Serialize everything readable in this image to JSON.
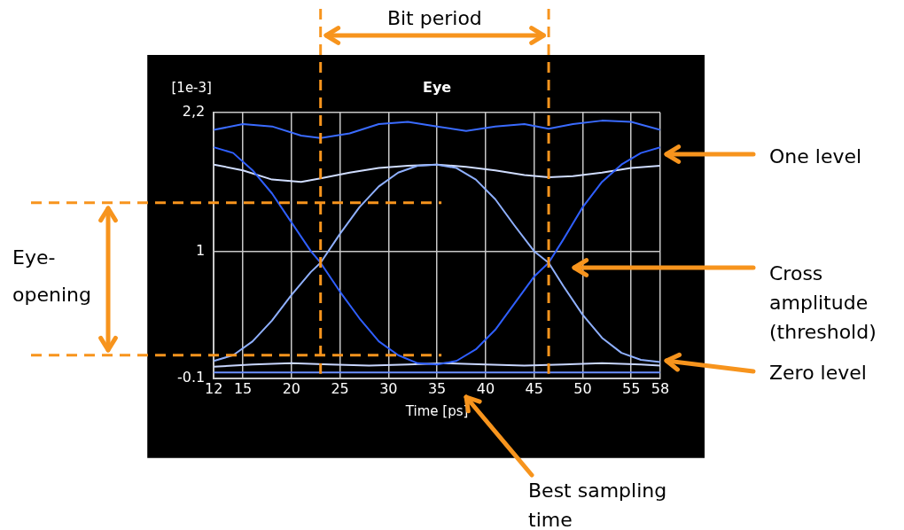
{
  "chart_data": {
    "type": "line",
    "title": "Eye",
    "ylabel": "[1e-3]",
    "xlabel": "Time [ps]",
    "xlim": [
      12,
      58
    ],
    "xticks": [
      12,
      15,
      20,
      25,
      30,
      35,
      40,
      45,
      50,
      55,
      58
    ],
    "ylim": [
      -0.1,
      2.2
    ],
    "yticks": [
      {
        "value": 2.2,
        "label": "2,2"
      },
      1,
      -0.1
    ],
    "grid": true,
    "legend": false,
    "marker": "none",
    "line_style": "solid",
    "series": [
      {
        "color": "#2f5fff",
        "x": [
          12,
          14,
          16,
          18,
          20,
          22,
          23,
          25,
          27,
          29,
          31,
          33,
          35,
          37,
          39,
          41,
          43,
          45,
          46.5,
          48,
          50,
          52,
          54,
          56,
          58
        ],
        "values": [
          1.9,
          1.85,
          1.7,
          1.5,
          1.25,
          1.0,
          0.9,
          0.65,
          0.42,
          0.22,
          0.1,
          0.03,
          0.02,
          0.05,
          0.15,
          0.32,
          0.55,
          0.78,
          0.9,
          1.1,
          1.38,
          1.6,
          1.75,
          1.85,
          1.9
        ]
      },
      {
        "color": "#8fb0ff",
        "x": [
          12,
          14,
          16,
          18,
          20,
          22,
          23,
          25,
          27,
          29,
          31,
          33,
          35,
          37,
          39,
          41,
          43,
          45,
          46.5,
          48,
          50,
          52,
          54,
          56,
          58
        ],
        "values": [
          0.05,
          0.1,
          0.22,
          0.4,
          0.62,
          0.82,
          0.9,
          1.15,
          1.38,
          1.56,
          1.68,
          1.74,
          1.75,
          1.72,
          1.62,
          1.45,
          1.22,
          1.0,
          0.9,
          0.7,
          0.45,
          0.25,
          0.12,
          0.06,
          0.04
        ]
      },
      {
        "color": "#d0ddff",
        "x": [
          12,
          15,
          18,
          21,
          23,
          26,
          29,
          32,
          35,
          38,
          41,
          44,
          46.5,
          49,
          52,
          55,
          58
        ],
        "values": [
          1.75,
          1.7,
          1.62,
          1.6,
          1.63,
          1.68,
          1.72,
          1.74,
          1.75,
          1.73,
          1.7,
          1.66,
          1.64,
          1.65,
          1.68,
          1.72,
          1.74
        ]
      },
      {
        "color": "#3a6bff",
        "x": [
          12,
          15,
          18,
          21,
          23,
          26,
          29,
          32,
          35,
          38,
          41,
          44,
          46.5,
          49,
          52,
          55,
          58
        ],
        "values": [
          2.05,
          2.1,
          2.08,
          2.0,
          1.98,
          2.02,
          2.1,
          2.12,
          2.08,
          2.04,
          2.08,
          2.1,
          2.06,
          2.1,
          2.13,
          2.12,
          2.05
        ]
      },
      {
        "color": "#c8d6ff",
        "x": [
          12,
          16,
          20,
          24,
          28,
          32,
          36,
          40,
          44,
          48,
          52,
          56,
          58
        ],
        "values": [
          0.0,
          0.02,
          0.03,
          0.02,
          0.01,
          0.02,
          0.03,
          0.02,
          0.01,
          0.02,
          0.03,
          0.02,
          0.01
        ]
      },
      {
        "color": "#6b91ff",
        "x": [
          12,
          58
        ],
        "values": [
          -0.05,
          -0.05
        ]
      }
    ],
    "ref_lines": [
      {
        "axis": "x",
        "value": 23,
        "color": "#f7941d",
        "line_style": "dashed"
      },
      {
        "axis": "x",
        "value": 46.5,
        "color": "#f7941d",
        "line_style": "dashed"
      },
      {
        "axis": "y",
        "value": 1.42,
        "color": "#f7941d",
        "line_style": "dashed"
      },
      {
        "axis": "y",
        "value": 0.1,
        "color": "#f7941d",
        "line_style": "dashed"
      }
    ],
    "annotations": [
      "Bit period",
      "Eye-opening",
      "One level",
      "Cross amplitude (threshold)",
      "Zero level",
      "Best sampling time"
    ]
  }
}
